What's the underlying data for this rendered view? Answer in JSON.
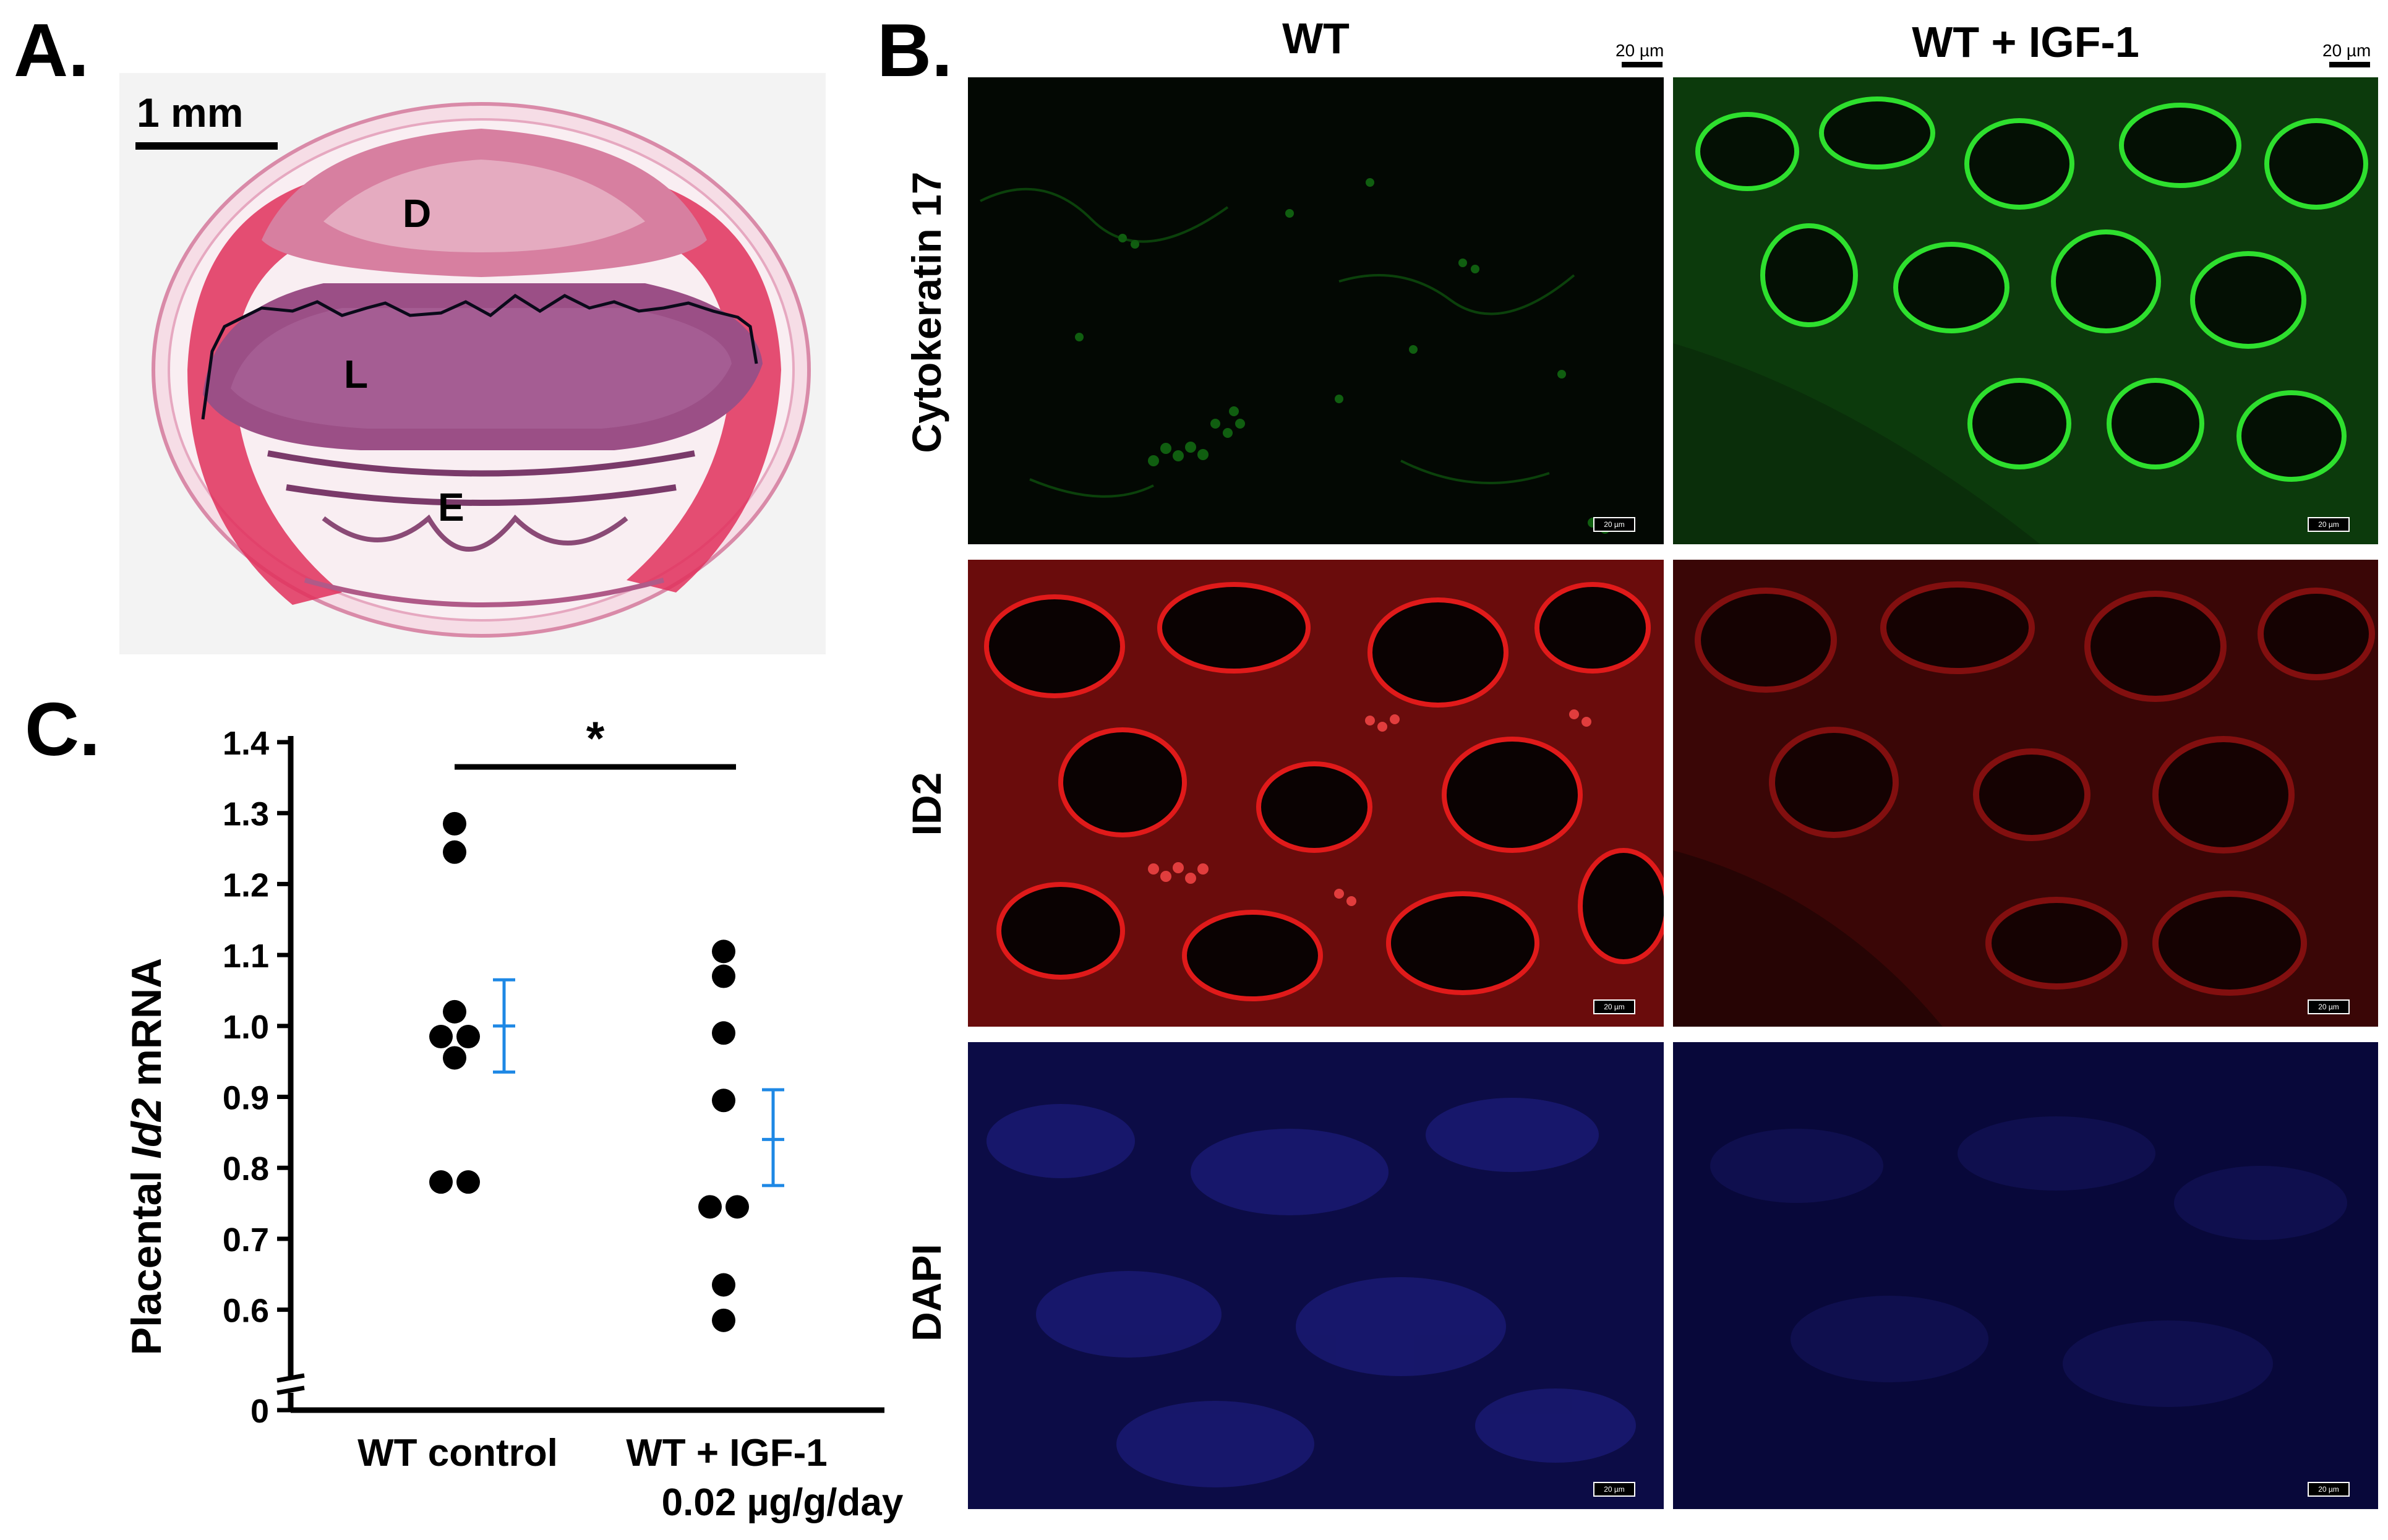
{
  "figure": {
    "panel_a": {
      "letter": "A.",
      "scale_label": "1 mm",
      "labels": {
        "decidua": "D",
        "labyrinth": "L",
        "embryo": "E"
      }
    },
    "panel_b": {
      "letter": "B.",
      "col_headers": [
        "WT",
        "WT + IGF-1"
      ],
      "row_labels": [
        "Cytokeratin 17",
        "ID2",
        "DAPI"
      ],
      "scale_label": "20 µm",
      "inset_scale_label": "20 µm",
      "colors": {
        "cytokeratin": "#1fc81f",
        "id2": "#d41414",
        "dapi": "#1a1a9a"
      }
    },
    "panel_c": {
      "letter": "C."
    }
  },
  "chart_data": {
    "type": "scatter",
    "ylabel_prefix": "Placental ",
    "ylabel_italic": "Id2",
    "ylabel_suffix": " mRNA",
    "ylim": [
      0.55,
      1.4
    ],
    "y_ticks": [
      "1.4",
      "1.3",
      "1.2",
      "1.1",
      "1.0",
      "0.9",
      "0.8",
      "0.7",
      "0.6",
      "0"
    ],
    "y_break": true,
    "categories": [
      "WT control",
      "WT + IGF-1"
    ],
    "category_sublabels": [
      "",
      "0.02 µg/g/day"
    ],
    "significance": "*",
    "point_color": "#000000",
    "error_color": "#1e88e5",
    "series": [
      {
        "points": [
          1.285,
          1.245,
          1.02,
          0.985,
          0.985,
          0.955,
          0.78,
          0.78
        ],
        "mean": 1.0,
        "upper": 1.065,
        "lower": 0.935
      },
      {
        "points": [
          1.105,
          1.07,
          0.99,
          0.895,
          0.745,
          0.745,
          0.635,
          0.585
        ],
        "mean": 0.84,
        "upper": 0.91,
        "lower": 0.775
      }
    ]
  }
}
